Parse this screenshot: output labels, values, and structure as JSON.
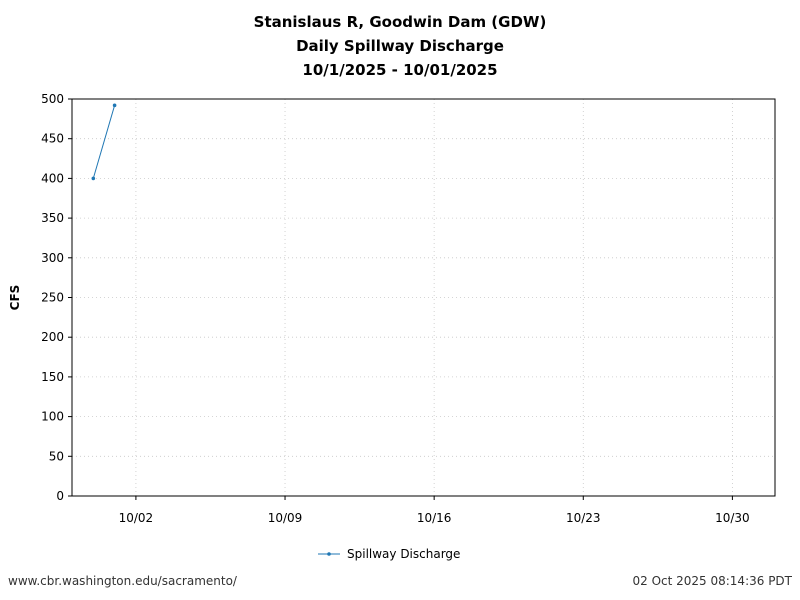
{
  "chart_data": {
    "type": "line",
    "title_lines": [
      "Stanislaus R, Goodwin Dam (GDW)",
      "Daily Spillway Discharge",
      "10/1/2025 - 10/01/2025"
    ],
    "xlabel": "",
    "ylabel": "CFS",
    "xlim": [
      "2025-09-29",
      "2025-11-01"
    ],
    "ylim": [
      0,
      500
    ],
    "yticks": [
      0,
      50,
      100,
      150,
      200,
      250,
      300,
      350,
      400,
      450,
      500
    ],
    "xticks": [
      {
        "date": "2025-10-02",
        "label": "10/02"
      },
      {
        "date": "2025-10-09",
        "label": "10/09"
      },
      {
        "date": "2025-10-16",
        "label": "10/16"
      },
      {
        "date": "2025-10-23",
        "label": "10/23"
      },
      {
        "date": "2025-10-30",
        "label": "10/30"
      }
    ],
    "grid": true,
    "legend_position": "bottom-center",
    "series": [
      {
        "name": "Spillway Discharge",
        "color": "#1f77b4",
        "points": [
          {
            "x": "2025-09-30",
            "y": 400
          },
          {
            "x": "2025-10-01",
            "y": 492
          }
        ]
      }
    ]
  },
  "footer": {
    "left": "www.cbr.washington.edu/sacramento/",
    "right": "02 Oct 2025 08:14:36 PDT"
  }
}
